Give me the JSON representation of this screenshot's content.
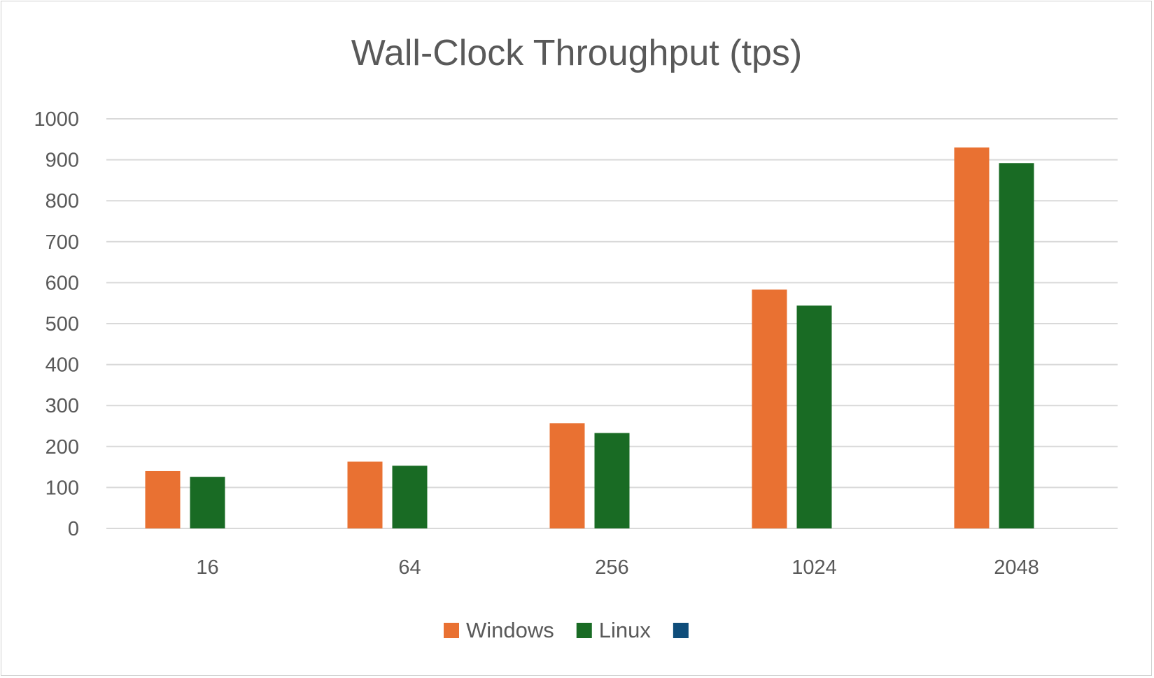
{
  "chart_data": {
    "type": "bar",
    "title": "Wall-Clock Throughput (tps)",
    "xlabel": "",
    "ylabel": "",
    "categories": [
      "16",
      "64",
      "256",
      "1024",
      "2048"
    ],
    "ylim": [
      0,
      1000
    ],
    "yticks": [
      0,
      100,
      200,
      300,
      400,
      500,
      600,
      700,
      800,
      900,
      1000
    ],
    "grid": true,
    "legend_position": "bottom",
    "series": [
      {
        "name": "Windows",
        "color": "#E97132",
        "values": [
          140,
          163,
          257,
          583,
          930
        ]
      },
      {
        "name": "Linux",
        "color": "#196B24",
        "values": [
          126,
          153,
          233,
          544,
          892
        ]
      },
      {
        "name": "",
        "color": "#0F4D7A",
        "values": [
          null,
          null,
          null,
          null,
          null
        ]
      }
    ]
  }
}
